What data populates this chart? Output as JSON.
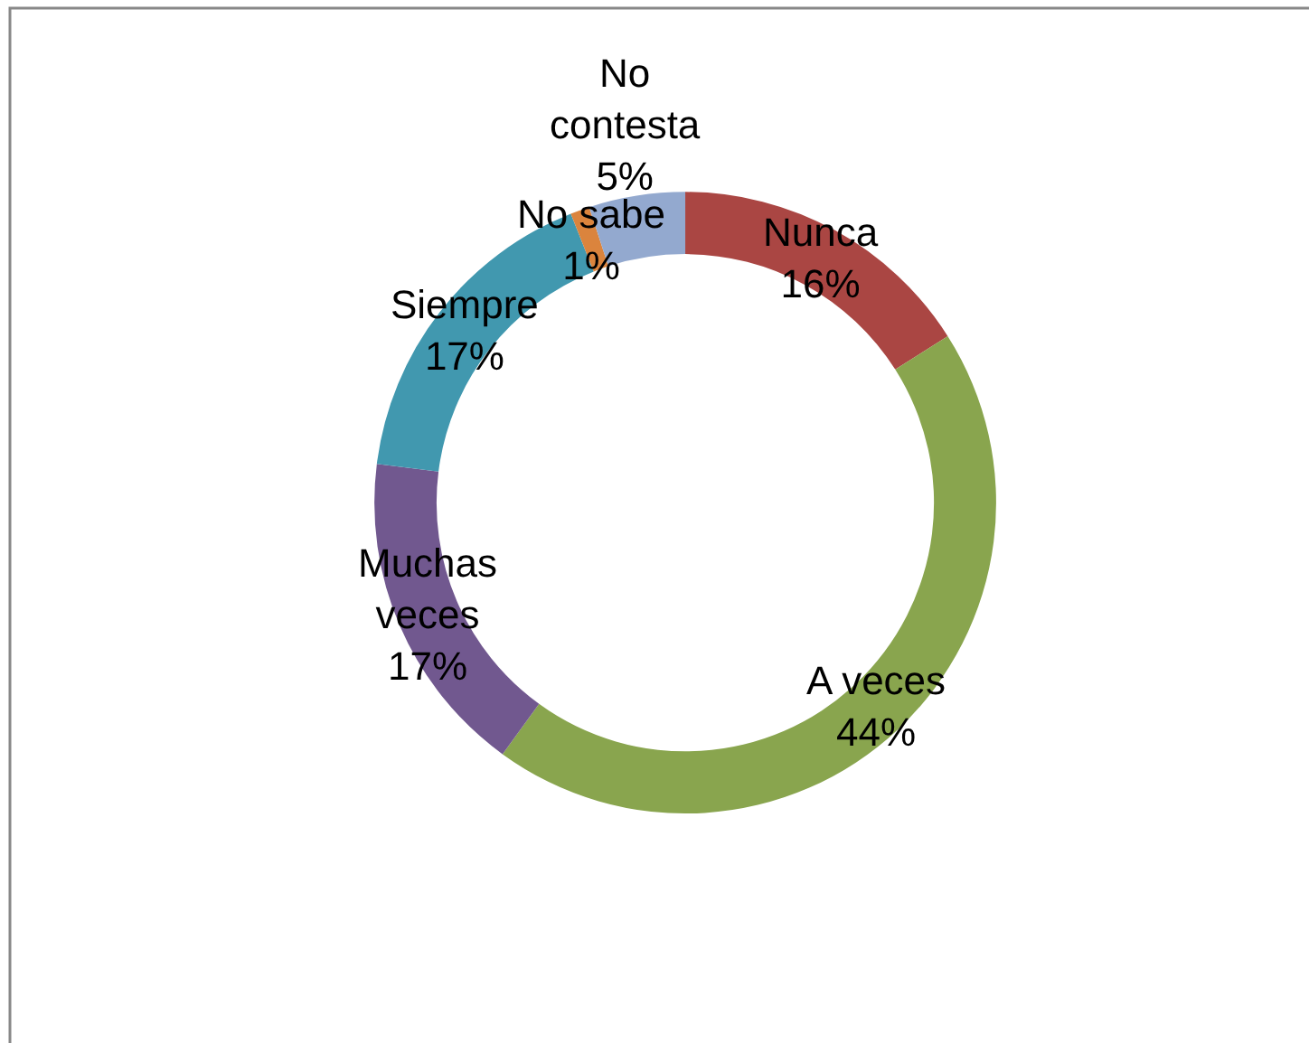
{
  "chart_data": {
    "type": "donut",
    "categories": [
      "Nunca",
      "A veces",
      "Muchas veces",
      "Siempre",
      "No sabe",
      "No contesta"
    ],
    "values": [
      16,
      44,
      17,
      17,
      1,
      5
    ],
    "colors": [
      "#aa4643",
      "#89a54e",
      "#71588f",
      "#4198af",
      "#db843d",
      "#93a9cf"
    ],
    "value_labels": [
      "16%",
      "44%",
      "17%",
      "17%",
      "1%",
      "5%"
    ]
  }
}
